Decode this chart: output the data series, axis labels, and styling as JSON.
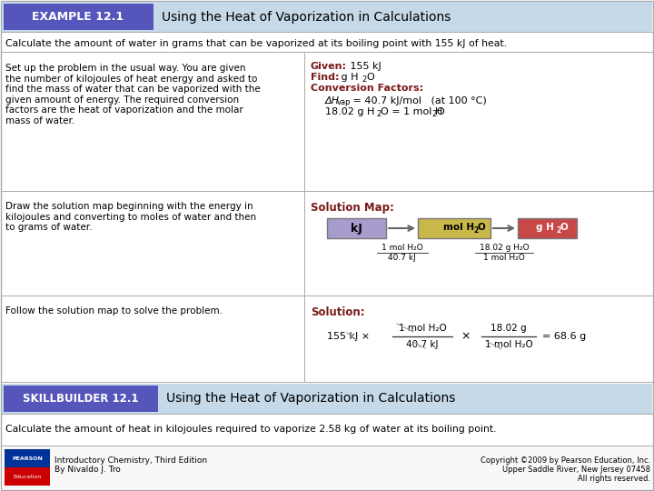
{
  "bg_color": "#ffffff",
  "header_bg": "#c5d9e8",
  "header_label_bg": "#5555bb",
  "header_label_text": "#ffffff",
  "header_label": "EXAMPLE 12.1",
  "header_title": "Using the Heat of Vaporization in Calculations",
  "intro_text": "Calculate the amount of water in grams that can be vaporized at its boiling point with 155 kJ of heat.",
  "left_col1": "Set up the problem in the usual way. You are given\nthe number of kilojoules of heat energy and asked to\nfind the mass of water that can be vaporized with the\ngiven amount of energy. The required conversion\nfactors are the heat of vaporization and the molar\nmass of water.",
  "left_col2": "Draw the solution map beginning with the energy in\nkilojoules and converting to moles of water and then\nto grams of water.",
  "left_col3": "Follow the solution map to solve the problem.",
  "skillbuilder_bg": "#c5d9e8",
  "skillbuilder_label_bg": "#5555bb",
  "skillbuilder_label_text": "#ffffff",
  "skillbuilder_label": "SKILLBUILDER 12.1",
  "skillbuilder_title": "Using the Heat of Vaporization in Calculations",
  "skillbuilder_desc": "Calculate the amount of heat in kilojoules required to vaporize 2.58 kg of water at its boiling point.",
  "footer_left1": "Introductory Chemistry, Third Edition",
  "footer_left2": "By Nivaldo J. Tro",
  "footer_right1": "Copyright ©2009 by Pearson Education, Inc.",
  "footer_right2": "Upper Saddle River, New Jersey 07458",
  "footer_right3": "All rights reserved.",
  "dark_red": "#7b1a1a",
  "box1_color": "#a89ccc",
  "box2_color": "#c8b84a",
  "box3_color": "#c84848",
  "line_color": "#888888",
  "border_color": "#aaaaaa",
  "pearson_blue": "#003399",
  "pearson_red": "#cc0000"
}
